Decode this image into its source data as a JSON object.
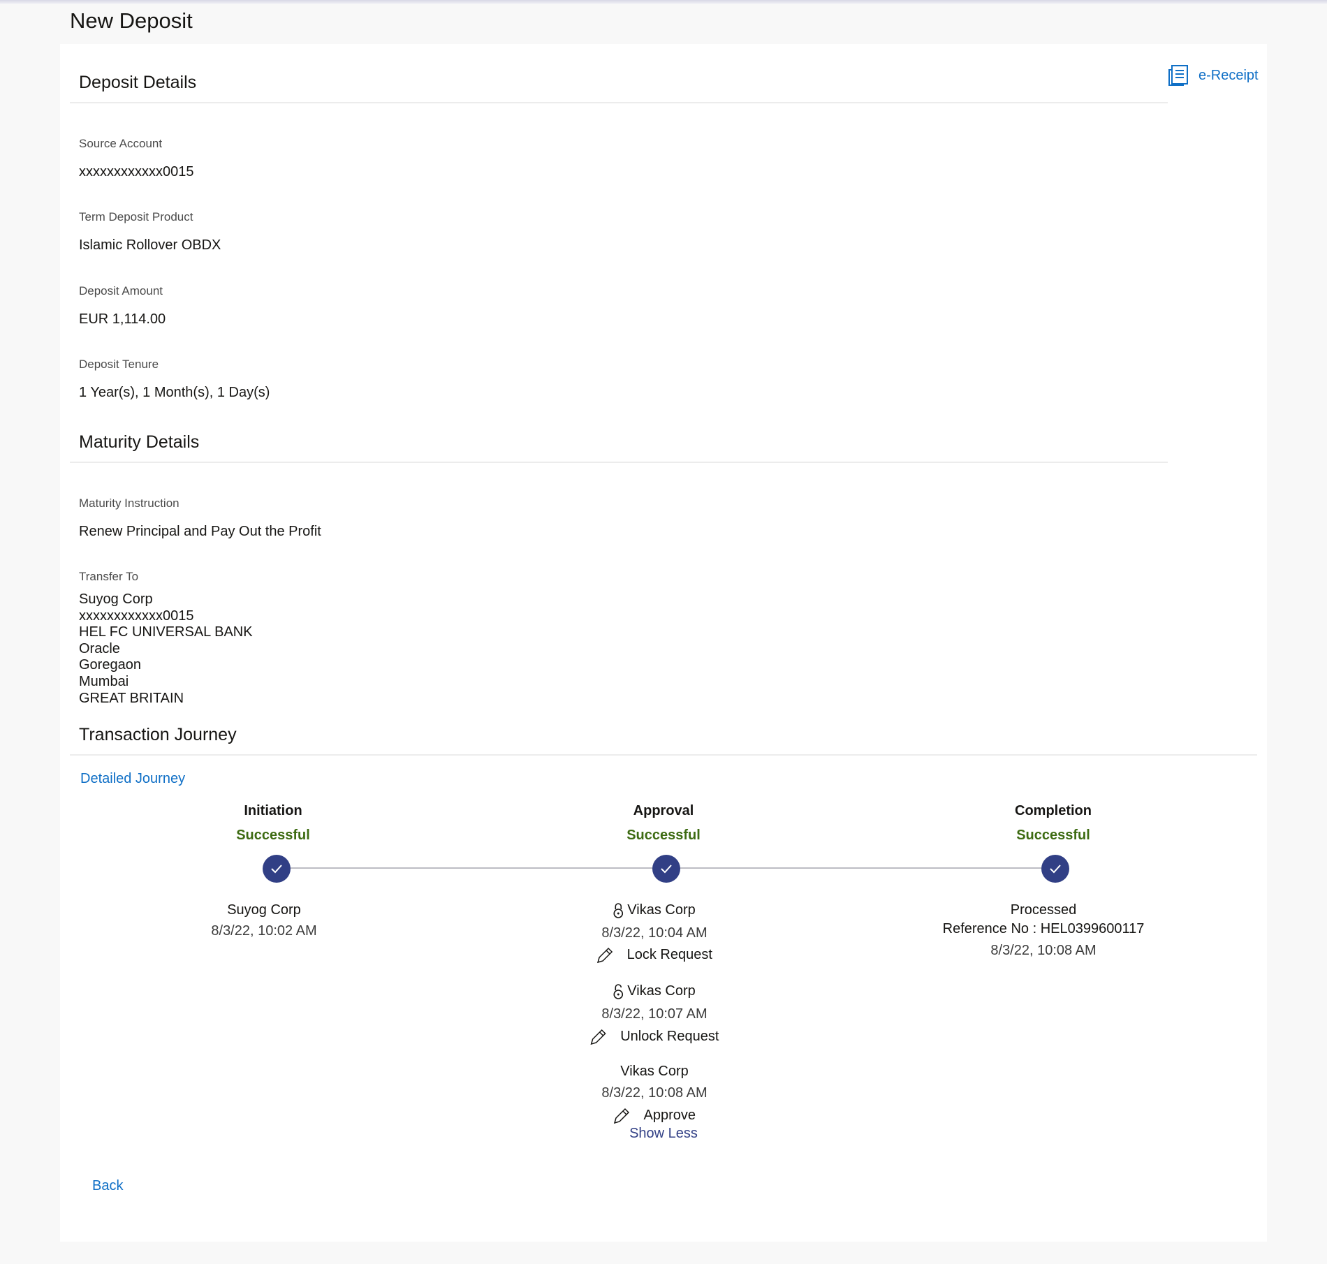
{
  "page": {
    "title": "New Deposit"
  },
  "ereceipt": {
    "label": "e-Receipt",
    "icon": "receipt-icon"
  },
  "deposit_details": {
    "heading": "Deposit Details",
    "fields": [
      {
        "label": "Source Account",
        "value": "xxxxxxxxxxxx0015"
      },
      {
        "label": "Term Deposit Product",
        "value": "Islamic Rollover OBDX"
      },
      {
        "label": "Deposit Amount",
        "value": "EUR 1,114.00"
      },
      {
        "label": "Deposit Tenure",
        "value": "1 Year(s), 1 Month(s), 1 Day(s)"
      }
    ]
  },
  "maturity_details": {
    "heading": "Maturity Details",
    "instruction_label": "Maturity Instruction",
    "instruction_value": "Renew Principal and Pay Out the Profit",
    "transfer_label": "Transfer To",
    "transfer_lines": [
      "Suyog Corp",
      "xxxxxxxxxxxx0015",
      "HEL FC UNIVERSAL BANK",
      "Oracle",
      "Goregaon",
      "Mumbai",
      "GREAT BRITAIN"
    ]
  },
  "journey": {
    "heading": "Transaction Journey",
    "detailed_link": "Detailed Journey",
    "status_color": "#3d6b12",
    "step_color": "#313f85",
    "steps": [
      {
        "title": "Initiation",
        "status": "Successful",
        "user": "Suyog Corp",
        "time": "8/3/22, 10:02 AM"
      },
      {
        "title": "Approval",
        "status": "Successful",
        "events": [
          {
            "user": "Vikas Corp",
            "time": "8/3/22, 10:04 AM",
            "action": "Lock Request",
            "icon": "lock-icon"
          },
          {
            "user": "Vikas Corp",
            "time": "8/3/22, 10:07 AM",
            "action": "Unlock Request",
            "icon": "unlock-icon"
          },
          {
            "user": "Vikas Corp",
            "time": "8/3/22, 10:08 AM",
            "action": "Approve"
          }
        ],
        "show_less": "Show Less"
      },
      {
        "title": "Completion",
        "status": "Successful",
        "result": "Processed",
        "reference": "Reference No : HEL0399600117",
        "time": "8/3/22, 10:08 AM"
      }
    ]
  },
  "back_label": "Back"
}
